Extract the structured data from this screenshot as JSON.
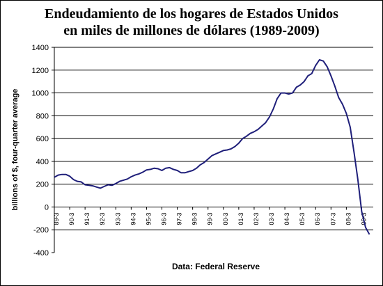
{
  "chart_data": {
    "type": "line",
    "title_line1": "Endeudamiento de los hogares de Estados Unidos",
    "title_line2": "en miles de millones de dólares (1989-2009)",
    "ylabel": "billions of $, four-quarter average",
    "xlabel": "",
    "source": "Data: Federal Reserve",
    "ylim": [
      -400,
      1400
    ],
    "yticks": [
      -400,
      -200,
      0,
      200,
      400,
      600,
      800,
      1000,
      1200,
      1400
    ],
    "xlim": [
      1989.0,
      2009.75
    ],
    "xticks": [
      {
        "label": "89-3",
        "x": 1989.0
      },
      {
        "label": "90-3",
        "x": 1990.0
      },
      {
        "label": "91-3",
        "x": 1991.0
      },
      {
        "label": "92-3",
        "x": 1992.0
      },
      {
        "label": "93-3",
        "x": 1993.0
      },
      {
        "label": "94-3",
        "x": 1994.0
      },
      {
        "label": "95-3",
        "x": 1995.0
      },
      {
        "label": "96-3",
        "x": 1996.0
      },
      {
        "label": "97-3",
        "x": 1997.0
      },
      {
        "label": "98-3",
        "x": 1998.0
      },
      {
        "label": "99-3",
        "x": 1999.0
      },
      {
        "label": "00-3",
        "x": 2000.0
      },
      {
        "label": "01-3",
        "x": 2001.0
      },
      {
        "label": "02-3",
        "x": 2002.0
      },
      {
        "label": "03-3",
        "x": 2003.0
      },
      {
        "label": "04-3",
        "x": 2004.0
      },
      {
        "label": "05-3",
        "x": 2005.0
      },
      {
        "label": "06-3",
        "x": 2006.0
      },
      {
        "label": "07-3",
        "x": 2007.0
      },
      {
        "label": "08-3",
        "x": 2008.0
      },
      {
        "label": "09-3",
        "x": 2009.0
      }
    ],
    "grid": true,
    "line_color": "#1f1f7a",
    "series": [
      {
        "x": [
          1989.0,
          1989.25,
          1989.5,
          1989.75,
          1990.0,
          1990.25,
          1990.5,
          1990.75,
          1991.0,
          1991.25,
          1991.5,
          1991.75,
          1992.0,
          1992.25,
          1992.5,
          1992.75,
          1993.0,
          1993.25,
          1993.5,
          1993.75,
          1994.0,
          1994.25,
          1994.5,
          1994.75,
          1995.0,
          1995.25,
          1995.5,
          1995.75,
          1996.0,
          1996.25,
          1996.5,
          1996.75,
          1997.0,
          1997.25,
          1997.5,
          1997.75,
          1998.0,
          1998.25,
          1998.5,
          1998.75,
          1999.0,
          1999.25,
          1999.5,
          1999.75,
          2000.0,
          2000.25,
          2000.5,
          2000.75,
          2001.0,
          2001.25,
          2001.5,
          2001.75,
          2002.0,
          2002.25,
          2002.5,
          2002.75,
          2003.0,
          2003.25,
          2003.5,
          2003.75,
          2004.0,
          2004.25,
          2004.5,
          2004.75,
          2005.0,
          2005.25,
          2005.5,
          2005.75,
          2006.0,
          2006.25,
          2006.5,
          2006.75,
          2007.0,
          2007.25,
          2007.5,
          2007.75,
          2008.0,
          2008.25,
          2008.5,
          2008.75,
          2009.0,
          2009.25,
          2009.5
        ],
        "y": [
          260,
          280,
          285,
          285,
          270,
          240,
          225,
          220,
          195,
          190,
          185,
          175,
          165,
          180,
          195,
          190,
          205,
          225,
          235,
          245,
          265,
          280,
          290,
          305,
          325,
          330,
          340,
          335,
          320,
          340,
          345,
          330,
          320,
          300,
          300,
          310,
          320,
          340,
          370,
          390,
          420,
          450,
          465,
          480,
          495,
          500,
          510,
          530,
          560,
          600,
          620,
          645,
          660,
          680,
          710,
          740,
          790,
          860,
          950,
          1000,
          1000,
          990,
          1000,
          1050,
          1070,
          1100,
          1150,
          1170,
          1240,
          1290,
          1280,
          1230,
          1150,
          1060,
          960,
          900,
          820,
          700,
          480,
          240,
          -40,
          -180,
          -240
        ]
      }
    ]
  }
}
